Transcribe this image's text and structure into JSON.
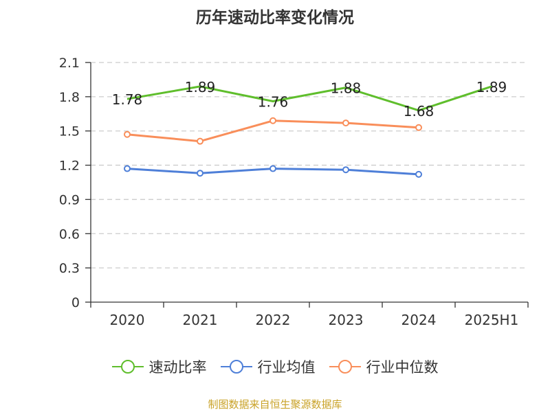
{
  "chart_data": {
    "type": "line",
    "title": "历年速动比率变化情况",
    "categories": [
      "2020",
      "2021",
      "2022",
      "2023",
      "2024",
      "2025H1"
    ],
    "yticks": [
      "2.1",
      "1.8",
      "1.5",
      "1.2",
      "0.9",
      "0.6",
      "0.3",
      "0"
    ],
    "ylim": [
      0,
      2.1
    ],
    "grid": true,
    "legend_position": "bottom",
    "series": [
      {
        "name": "速动比率",
        "color": "#5fbe2c",
        "values": [
          1.78,
          1.89,
          1.76,
          1.88,
          1.68,
          1.89
        ],
        "labels": [
          "1.78",
          "1.89",
          "1.76",
          "1.88",
          "1.68",
          "1.89"
        ]
      },
      {
        "name": "行业均值",
        "color": "#4e7fd8",
        "values": [
          1.17,
          1.13,
          1.17,
          1.16,
          1.12,
          null
        ]
      },
      {
        "name": "行业中位数",
        "color": "#f98e5a",
        "values": [
          1.47,
          1.41,
          1.59,
          1.57,
          1.53,
          null
        ]
      }
    ]
  },
  "source": "制图数据来自恒生聚源数据库"
}
